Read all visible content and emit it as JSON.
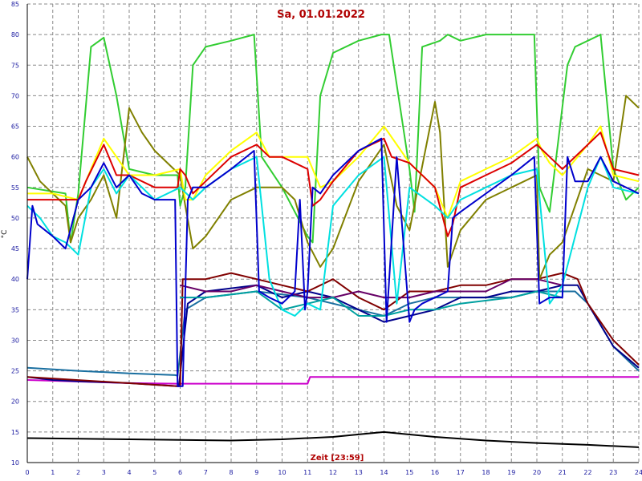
{
  "chart_data": {
    "type": "line",
    "title": "Sa, 01.01.2022",
    "xlabel": "Zeit [23:59]",
    "ylabel": "°C",
    "xlim": [
      0,
      24
    ],
    "ylim": [
      10,
      85
    ],
    "xticks": [
      0,
      1,
      2,
      3,
      4,
      5,
      6,
      7,
      8,
      9,
      10,
      11,
      12,
      13,
      14,
      15,
      16,
      17,
      18,
      19,
      20,
      21,
      22,
      23,
      24
    ],
    "yticks": [
      10,
      15,
      20,
      25,
      30,
      35,
      40,
      45,
      50,
      55,
      60,
      65,
      70,
      75,
      80,
      85
    ],
    "grid": true,
    "series": [
      {
        "color": "#000000",
        "x": [
          0,
          2,
          4,
          6,
          8,
          10,
          12,
          13,
          14,
          16,
          18,
          20,
          22,
          24
        ],
        "y": [
          14,
          13.9,
          13.8,
          13.7,
          13.6,
          13.8,
          14.2,
          14.6,
          15,
          14.2,
          13.6,
          13.2,
          12.9,
          12.5
        ]
      },
      {
        "color": "#cc00cc",
        "x": [
          0,
          4,
          5.9,
          6,
          11,
          11.1,
          24
        ],
        "y": [
          23.5,
          23,
          22.9,
          22.9,
          22.9,
          24,
          24
        ]
      },
      {
        "color": "#1a6fa0",
        "x": [
          0,
          2,
          4,
          5.8,
          5.9,
          6.2,
          7,
          9,
          10,
          11,
          12,
          13,
          14,
          15,
          16,
          17,
          19,
          20,
          21,
          21.5,
          22,
          23,
          24
        ],
        "y": [
          25.5,
          25,
          24.6,
          24.3,
          24.2,
          35,
          37,
          38,
          37.5,
          37,
          36,
          35,
          34,
          36,
          37,
          37,
          37,
          38,
          38,
          38,
          36,
          29,
          25
        ]
      },
      {
        "color": "#00008b",
        "x": [
          0,
          1,
          2,
          4,
          5.9,
          5.95,
          6.3,
          7,
          8,
          9,
          10,
          11,
          12,
          13,
          14,
          15,
          16,
          17,
          18,
          19,
          20,
          21,
          21.6,
          22,
          23,
          24
        ],
        "y": [
          24,
          23.5,
          23.3,
          23,
          22.5,
          22.5,
          36,
          38,
          38.5,
          39,
          37,
          38,
          37,
          35,
          33,
          34,
          35,
          37,
          37,
          38,
          38,
          39,
          39,
          36,
          29,
          25.5
        ]
      },
      {
        "color": "#800000",
        "x": [
          0,
          5.9,
          6.0,
          6.1,
          6.5,
          7,
          8,
          9,
          10,
          11,
          12,
          13,
          14,
          15,
          16,
          17,
          18,
          19,
          20,
          21,
          21.6,
          22,
          23,
          24
        ],
        "y": [
          24,
          22.5,
          22.5,
          40,
          40,
          40,
          41,
          40,
          39,
          38,
          40,
          37,
          35,
          38,
          38,
          39,
          39,
          40,
          40,
          41,
          40,
          36,
          30,
          26
        ]
      },
      {
        "color": "#660066",
        "x": [
          6,
          7,
          8,
          9,
          10,
          11,
          12,
          13,
          14,
          15,
          16,
          17,
          18,
          19,
          20,
          21
        ],
        "y": [
          39,
          38,
          38,
          39,
          38,
          37,
          37,
          38,
          37,
          37,
          38,
          38,
          38,
          40,
          40,
          39
        ]
      },
      {
        "color": "#00a0a0",
        "x": [
          6,
          7,
          9,
          10,
          11,
          12,
          13,
          14,
          15,
          16,
          17,
          19,
          20,
          21
        ],
        "y": [
          37,
          37,
          38,
          35,
          36,
          37,
          34,
          34,
          35,
          35,
          36,
          37,
          38,
          37
        ]
      },
      {
        "color": "#32cd32",
        "x": [
          0,
          1.5,
          1.7,
          2,
          2.5,
          3,
          3.5,
          4,
          5,
          5.9,
          6,
          6.2,
          6.5,
          7,
          8,
          8.9,
          9.2,
          10,
          11,
          11.2,
          11.5,
          12,
          13,
          13.9,
          14.2,
          15,
          15.2,
          15.5,
          16.2,
          16.5,
          17,
          18,
          19,
          19.9,
          20.1,
          20.5,
          21.2,
          21.5,
          22,
          22.5,
          23,
          23.5,
          24
        ],
        "y": [
          55,
          54,
          46,
          54,
          78,
          79.5,
          70,
          58,
          57,
          57,
          52,
          55,
          75,
          78,
          79,
          80,
          60,
          55,
          47,
          46,
          70,
          77,
          79,
          80,
          80,
          58,
          51,
          78,
          79,
          80,
          79,
          80,
          80,
          80,
          55,
          51,
          75,
          78,
          79,
          80,
          58,
          53,
          55
        ]
      },
      {
        "color": "#808000",
        "x": [
          0,
          0.5,
          1.5,
          1.7,
          2,
          2.5,
          3,
          3.5,
          4,
          4.5,
          5,
          6,
          6.2,
          6.5,
          7,
          8,
          9,
          10,
          10.5,
          11,
          11.5,
          12,
          13,
          14,
          14.5,
          15,
          16,
          16.2,
          16.5,
          17,
          18,
          19,
          20,
          20.1,
          20.5,
          21,
          21.5,
          22,
          23,
          23.5,
          24
        ],
        "y": [
          60,
          56,
          52,
          46,
          50,
          53,
          57,
          50,
          68,
          64,
          61,
          57,
          52,
          45,
          47,
          53,
          55,
          55,
          53,
          46,
          42,
          45,
          56,
          62,
          52,
          48,
          69,
          64,
          42,
          48,
          53,
          55,
          57,
          40,
          44,
          46,
          52,
          58,
          56,
          70,
          68
        ]
      },
      {
        "color": "#ffff00",
        "x": [
          0,
          1,
          2,
          3,
          4,
          5,
          6,
          6.2,
          6.5,
          7,
          8,
          9,
          9.5,
          10,
          11,
          11.5,
          12,
          13,
          14,
          15,
          16,
          16.5,
          17,
          18,
          19,
          20,
          20.2,
          20.5,
          21,
          22,
          22.5,
          23,
          24
        ],
        "y": [
          54,
          54,
          53,
          63,
          57,
          57,
          58,
          53,
          53,
          57,
          61,
          64,
          60,
          60,
          60,
          55,
          56,
          60,
          65,
          59,
          55,
          50,
          56,
          58,
          60,
          63,
          61,
          59,
          57,
          62,
          65,
          57,
          56
        ]
      },
      {
        "color": "#dd0000",
        "x": [
          0,
          1,
          2,
          2.3,
          3,
          3.5,
          4,
          5,
          5.9,
          6,
          6.2,
          6.5,
          7,
          8,
          9,
          9.5,
          10,
          11,
          11.2,
          11.5,
          12,
          13,
          14,
          14.3,
          15,
          16,
          16.5,
          16.7,
          17,
          18,
          19,
          20,
          20.5,
          21,
          22,
          22.5,
          23,
          24
        ],
        "y": [
          53,
          53,
          53,
          56,
          62,
          57,
          57,
          55,
          55,
          58,
          57,
          54,
          56,
          60,
          62,
          60,
          60,
          58,
          52,
          53,
          56,
          61,
          63,
          60,
          59,
          55,
          47,
          49,
          55,
          57,
          59,
          62,
          60,
          58,
          62,
          64,
          58,
          57
        ]
      },
      {
        "color": "#00e0e0",
        "x": [
          0,
          0.5,
          1,
          1.5,
          2,
          2.5,
          3,
          3.5,
          4,
          5,
          6,
          6.5,
          7,
          8,
          9,
          9.5,
          10,
          10.5,
          11,
          11.5,
          12,
          13,
          14,
          14.5,
          15,
          16,
          16.5,
          17,
          18,
          19,
          20,
          20.5,
          21,
          22,
          22.5,
          23,
          24
        ],
        "y": [
          52,
          50,
          47,
          46,
          44,
          55,
          58,
          54,
          57,
          53,
          55,
          53,
          55,
          58,
          60,
          40,
          35,
          34,
          36,
          35,
          52,
          57,
          60,
          36,
          55,
          52,
          50,
          53,
          55,
          57,
          58,
          36,
          39,
          55,
          60,
          55,
          54
        ]
      },
      {
        "color": "#0000cc",
        "x": [
          0,
          0.2,
          0.4,
          1,
          1.5,
          2,
          2.5,
          3,
          3.5,
          4,
          4.5,
          5,
          5.8,
          5.9,
          6.1,
          6.3,
          6.5,
          7,
          8,
          8.9,
          9.1,
          9.5,
          10,
          10.5,
          10.7,
          10.9,
          11,
          11.2,
          11.5,
          12,
          13,
          13.9,
          14.1,
          14.5,
          15,
          15.2,
          15.5,
          16,
          16.5,
          16.7,
          17,
          18,
          19,
          19.9,
          20.1,
          20.5,
          21,
          21.2,
          21.5,
          22,
          22.5,
          23,
          24
        ],
        "y": [
          40,
          52,
          49,
          47,
          45,
          53,
          55,
          59,
          55,
          57,
          54,
          53,
          53,
          22.5,
          22.5,
          53,
          55,
          55,
          58,
          61,
          38,
          37,
          36,
          38,
          53,
          35,
          38,
          55,
          54,
          57,
          61,
          63,
          33,
          60,
          33,
          35,
          36,
          37,
          38,
          50,
          51,
          54,
          57,
          60,
          36,
          37,
          37,
          60,
          56,
          56,
          60,
          56,
          54
        ]
      }
    ]
  }
}
